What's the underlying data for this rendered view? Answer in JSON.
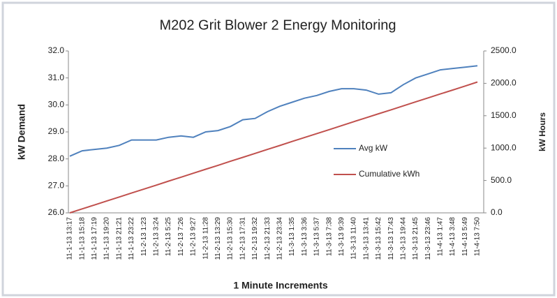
{
  "chart_data": {
    "type": "line",
    "title": "M202 Grit Blower 2 Energy Monitoring",
    "xlabel": "1 Minute Increments",
    "ylabel": "kW Demand",
    "y2label": "kW Hours",
    "categories": [
      "11-1-13 13:17",
      "11-1-13 15:18",
      "11-1-13 17:19",
      "11-1-13 19:20",
      "11-1-13 21:21",
      "11-1-13 23:22",
      "11-2-13 1:23",
      "11-2-13 3:24",
      "11-2-13 5:25",
      "11-2-13 7:26",
      "11-2-13 9:27",
      "11-2-13 11:28",
      "11-2-13 13:29",
      "11-2-13 15:30",
      "11-2-13 17:31",
      "11-2-13 19:32",
      "11-2-13 21:33",
      "11-2-13 23:34",
      "11-3-13 1:35",
      "11-3-13 3:36",
      "11-3-13 5:37",
      "11-3-13 7:38",
      "11-3-13 9:39",
      "11-3-13 11:40",
      "11-3-13 13:41",
      "11-3-13 15:42",
      "11-3-13 17:43",
      "11-3-13 19:44",
      "11-3-13 21:45",
      "11-3-13 23:46",
      "11-4-13 1:47",
      "11-4-13 3:48",
      "11-4-13 5:49",
      "11-4-13 7:50"
    ],
    "series": [
      {
        "name": "Avg kW",
        "color": "#4f81bd",
        "axis": "y",
        "values": [
          28.1,
          28.3,
          28.35,
          28.4,
          28.5,
          28.7,
          28.7,
          28.7,
          28.8,
          28.85,
          28.8,
          29.0,
          29.05,
          29.2,
          29.45,
          29.5,
          29.75,
          29.95,
          30.1,
          30.25,
          30.35,
          30.5,
          30.6,
          30.6,
          30.55,
          30.4,
          30.45,
          30.75,
          31.0,
          31.15,
          31.3,
          31.35,
          31.4,
          31.45
        ]
      },
      {
        "name": "Cumulative kWh",
        "color": "#c0504d",
        "axis": "y2",
        "values": [
          0,
          61,
          122,
          184,
          245,
          306,
          367,
          428,
          490,
          551,
          612,
          673,
          734,
          796,
          857,
          918,
          979,
          1040,
          1102,
          1163,
          1224,
          1285,
          1346,
          1408,
          1469,
          1530,
          1591,
          1652,
          1714,
          1775,
          1836,
          1897,
          1958,
          2020
        ]
      }
    ],
    "ylim": [
      26,
      32
    ],
    "yticks": [
      {
        "value": 26,
        "label": "26.0"
      },
      {
        "value": 27,
        "label": "27.0"
      },
      {
        "value": 28,
        "label": "28.0"
      },
      {
        "value": 29,
        "label": "29.0"
      },
      {
        "value": 30,
        "label": "30.0"
      },
      {
        "value": 31,
        "label": "31.0"
      },
      {
        "value": 32,
        "label": "32.0"
      }
    ],
    "y2lim": [
      0,
      2500
    ],
    "y2ticks": [
      {
        "value": 0,
        "label": "0.0"
      },
      {
        "value": 500,
        "label": "500.0"
      },
      {
        "value": 1000,
        "label": "1000.0"
      },
      {
        "value": 1500,
        "label": "1500.0"
      },
      {
        "value": 2000,
        "label": "2000.0"
      },
      {
        "value": 2500,
        "label": "2500.0"
      }
    ],
    "grid": false,
    "legend": "inside-right"
  }
}
